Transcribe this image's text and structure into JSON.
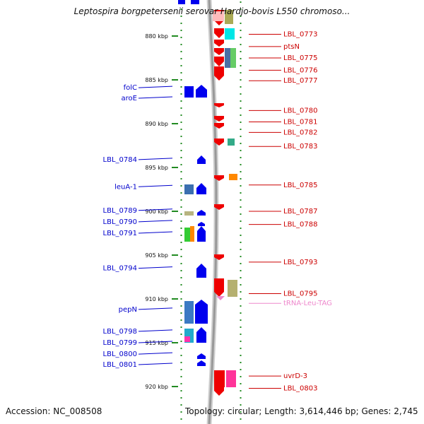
{
  "title": "Leptospira borgpetersenii serovar Hardjo-bovis L550 chromoso...",
  "footer": {
    "accession": "Accession: NC_008508",
    "summary": "Topology: circular; Length: 3,614,446 bp; Genes: 2,745"
  },
  "colors": {
    "forward_cds": "#0000ee",
    "reverse_cds": "#ee0000",
    "backbone": "#999999",
    "ruler_dots": "#228b22",
    "left_labels": "#0000cc",
    "right_labels": "#cc0000",
    "trna": "#ee88cc"
  },
  "position_markers": [
    {
      "kbp": 880,
      "label": "880 kbp"
    },
    {
      "kbp": 885,
      "label": "885 kbp"
    },
    {
      "kbp": 890,
      "label": "890 kbp"
    },
    {
      "kbp": 895,
      "label": "895 kbp"
    },
    {
      "kbp": 900,
      "label": "900 kbp"
    },
    {
      "kbp": 905,
      "label": "905 kbp"
    },
    {
      "kbp": 910,
      "label": "910 kbp"
    },
    {
      "kbp": 915,
      "label": "915 kbp"
    },
    {
      "kbp": 920,
      "label": "920 kbp"
    }
  ],
  "left_features": [
    {
      "label": "folC",
      "kbp": 885.9,
      "strand": "+"
    },
    {
      "label": "aroE",
      "kbp": 887.1,
      "strand": "+"
    },
    {
      "label": "LBL_0784",
      "kbp": 894.1,
      "strand": "+"
    },
    {
      "label": "leuA-1",
      "kbp": 897.2,
      "strand": "+"
    },
    {
      "label": "LBL_0789",
      "kbp": 899.9,
      "strand": "+"
    },
    {
      "label": "LBL_0790",
      "kbp": 901.2,
      "strand": "+"
    },
    {
      "label": "LBL_0791",
      "kbp": 902.5,
      "strand": "+"
    },
    {
      "label": "LBL_0794",
      "kbp": 906.5,
      "strand": "+"
    },
    {
      "label": "pepN",
      "kbp": 911.2,
      "strand": "+"
    },
    {
      "label": "LBL_0798",
      "kbp": 913.7,
      "strand": "+"
    },
    {
      "label": "LBL_0799",
      "kbp": 915.0,
      "strand": "+"
    },
    {
      "label": "LBL_0800",
      "kbp": 916.3,
      "strand": "+"
    },
    {
      "label": "LBL_0801",
      "kbp": 917.5,
      "strand": "+"
    }
  ],
  "right_features": [
    {
      "label": "LBL_0773",
      "kbp": 879.8,
      "strand": "-"
    },
    {
      "label": "ptsN",
      "kbp": 881.2,
      "strand": "-"
    },
    {
      "label": "LBL_0775",
      "kbp": 882.5,
      "strand": "-"
    },
    {
      "label": "LBL_0776",
      "kbp": 883.9,
      "strand": "-"
    },
    {
      "label": "LBL_0777",
      "kbp": 885.1,
      "strand": "-"
    },
    {
      "label": "LBL_0780",
      "kbp": 888.5,
      "strand": "-"
    },
    {
      "label": "LBL_0781",
      "kbp": 889.8,
      "strand": "-"
    },
    {
      "label": "LBL_0782",
      "kbp": 891.0,
      "strand": "-"
    },
    {
      "label": "LBL_0783",
      "kbp": 892.6,
      "strand": "-"
    },
    {
      "label": "LBL_0785",
      "kbp": 897.0,
      "strand": "-"
    },
    {
      "label": "LBL_0787",
      "kbp": 900.0,
      "strand": "-"
    },
    {
      "label": "LBL_0788",
      "kbp": 901.5,
      "strand": "-"
    },
    {
      "label": "LBL_0793",
      "kbp": 905.8,
      "strand": "-"
    },
    {
      "label": "LBL_0795",
      "kbp": 909.4,
      "strand": "-"
    },
    {
      "label": "tRNA-Leu-TAG",
      "kbp": 910.5,
      "strand": "-"
    },
    {
      "label": "uvrD-3",
      "kbp": 918.8,
      "strand": "-"
    },
    {
      "label": "LBL_0803",
      "kbp": 920.2,
      "strand": "-"
    }
  ]
}
